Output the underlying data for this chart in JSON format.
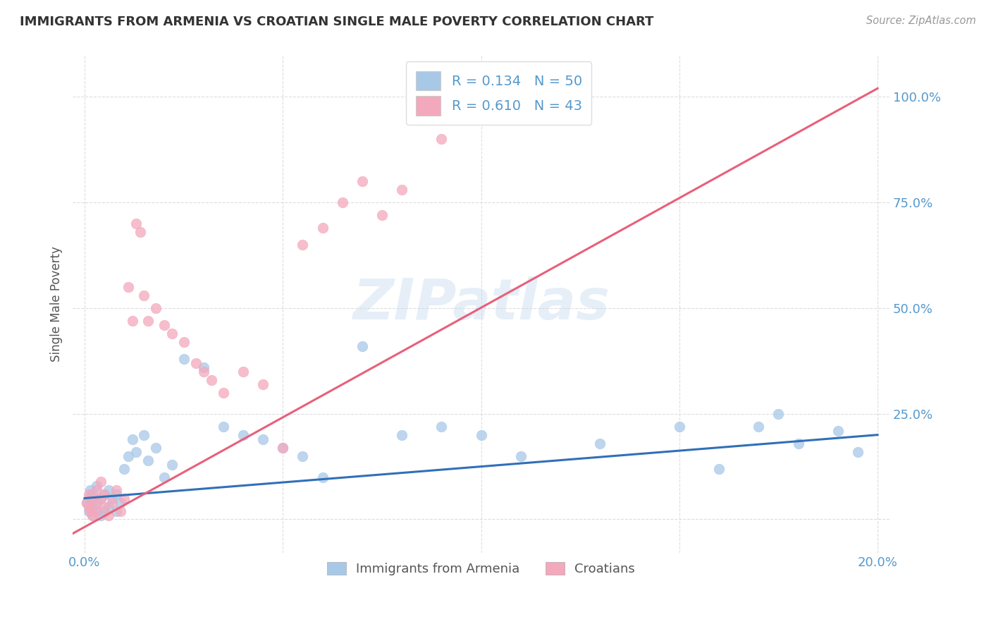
{
  "title": "IMMIGRANTS FROM ARMENIA VS CROATIAN SINGLE MALE POVERTY CORRELATION CHART",
  "source": "Source: ZipAtlas.com",
  "ylabel": "Single Male Poverty",
  "blue_R": 0.134,
  "blue_N": 50,
  "pink_R": 0.61,
  "pink_N": 43,
  "blue_color": "#A8C8E8",
  "pink_color": "#F4A8BC",
  "blue_line_color": "#3070B8",
  "pink_line_color": "#E8607A",
  "axis_color": "#5599CC",
  "legend_label_1": "Immigrants from Armenia",
  "legend_label_2": "Croatians",
  "blue_x": [
    0.0005,
    0.001,
    0.001,
    0.0015,
    0.002,
    0.002,
    0.002,
    0.003,
    0.003,
    0.003,
    0.004,
    0.004,
    0.005,
    0.005,
    0.006,
    0.006,
    0.007,
    0.008,
    0.008,
    0.009,
    0.01,
    0.011,
    0.012,
    0.013,
    0.015,
    0.016,
    0.018,
    0.02,
    0.022,
    0.025,
    0.03,
    0.035,
    0.04,
    0.045,
    0.05,
    0.055,
    0.06,
    0.07,
    0.08,
    0.09,
    0.1,
    0.11,
    0.13,
    0.15,
    0.16,
    0.17,
    0.175,
    0.18,
    0.19,
    0.195
  ],
  "blue_y": [
    0.04,
    0.05,
    0.02,
    0.07,
    0.01,
    0.03,
    0.06,
    0.02,
    0.04,
    0.08,
    0.01,
    0.05,
    0.02,
    0.06,
    0.03,
    0.07,
    0.05,
    0.02,
    0.06,
    0.04,
    0.12,
    0.15,
    0.19,
    0.16,
    0.2,
    0.14,
    0.17,
    0.1,
    0.13,
    0.38,
    0.36,
    0.22,
    0.2,
    0.19,
    0.17,
    0.15,
    0.1,
    0.41,
    0.2,
    0.22,
    0.2,
    0.15,
    0.18,
    0.22,
    0.12,
    0.22,
    0.25,
    0.18,
    0.21,
    0.16
  ],
  "pink_x": [
    0.0005,
    0.001,
    0.001,
    0.0015,
    0.002,
    0.002,
    0.003,
    0.003,
    0.003,
    0.004,
    0.004,
    0.005,
    0.005,
    0.006,
    0.007,
    0.008,
    0.009,
    0.01,
    0.011,
    0.012,
    0.013,
    0.014,
    0.015,
    0.016,
    0.018,
    0.02,
    0.022,
    0.025,
    0.028,
    0.03,
    0.032,
    0.035,
    0.04,
    0.045,
    0.05,
    0.055,
    0.06,
    0.065,
    0.07,
    0.075,
    0.08,
    0.09,
    0.11
  ],
  "pink_y": [
    0.04,
    0.03,
    0.06,
    0.02,
    0.05,
    0.01,
    0.04,
    0.07,
    0.02,
    0.05,
    0.09,
    0.03,
    0.06,
    0.01,
    0.04,
    0.07,
    0.02,
    0.05,
    0.55,
    0.47,
    0.7,
    0.68,
    0.53,
    0.47,
    0.5,
    0.46,
    0.44,
    0.42,
    0.37,
    0.35,
    0.33,
    0.3,
    0.35,
    0.32,
    0.17,
    0.65,
    0.69,
    0.75,
    0.8,
    0.72,
    0.78,
    0.9,
    0.97
  ]
}
